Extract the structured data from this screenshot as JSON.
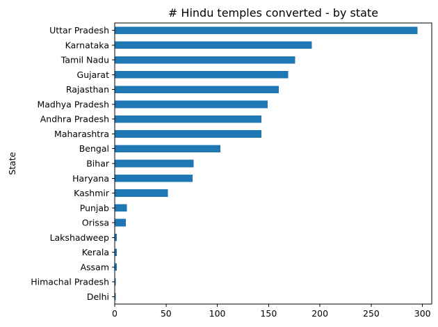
{
  "chart_data": {
    "type": "bar",
    "orientation": "horizontal",
    "title": "# Hindu temples converted - by state",
    "xlabel": "",
    "ylabel": "State",
    "xlim": [
      0,
      309
    ],
    "xticks": [
      0,
      50,
      100,
      150,
      200,
      250,
      300
    ],
    "grid": false,
    "bar_color": "#1f77b4",
    "categories": [
      "Uttar Pradesh",
      "Karnataka",
      "Tamil Nadu",
      "Gujarat",
      "Rajasthan",
      "Madhya Pradesh",
      "Andhra Pradesh",
      "Maharashtra",
      "Bengal",
      "Bihar",
      "Haryana",
      "Kashmir",
      "Punjab",
      "Orissa",
      "Lakshadweep",
      "Kerala",
      "Assam",
      "Himachal Pradesh",
      "Delhi"
    ],
    "values": [
      295,
      192,
      176,
      169,
      160,
      149,
      143,
      143,
      103,
      77,
      76,
      52,
      12,
      11,
      2,
      2,
      2,
      1,
      1
    ]
  }
}
